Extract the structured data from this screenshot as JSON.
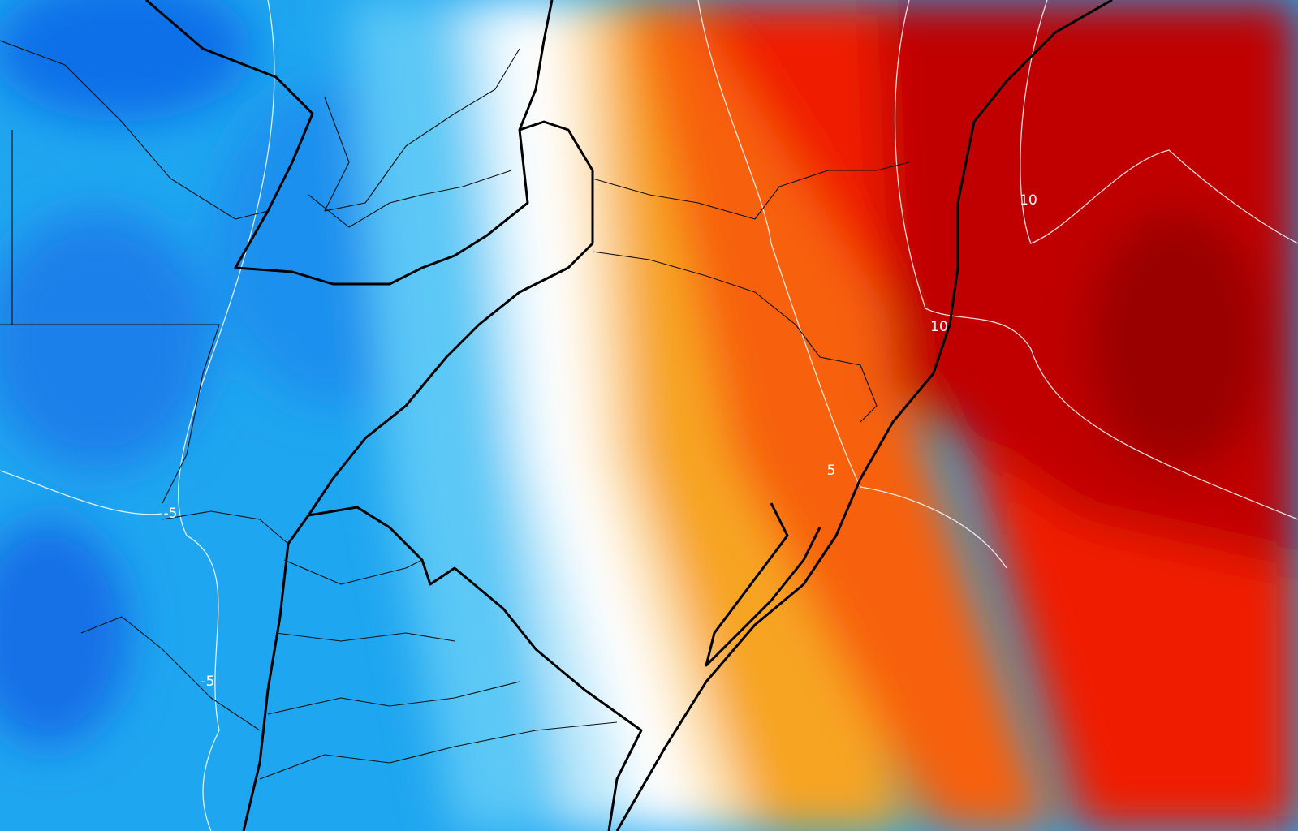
{
  "contour_labels": [
    "10",
    "10",
    "5",
    "-5",
    "-5"
  ]
}
